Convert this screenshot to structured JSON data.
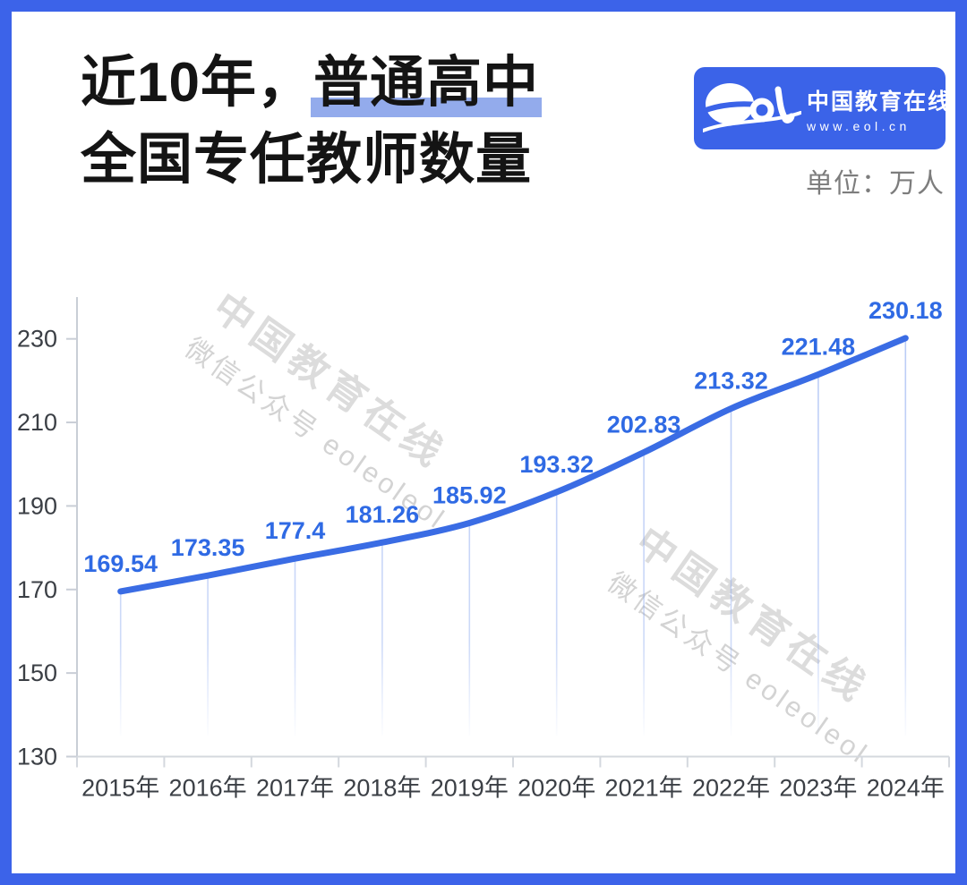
{
  "frame_color": "#3c63e9",
  "header": {
    "title_line1_pre": "近10年，",
    "title_line1_highlight": "普通高中",
    "title_line2": "全国专任教师数量",
    "unit_label": "单位：万人",
    "logo": {
      "name": "中国教育在线",
      "url": "www.eol.cn"
    }
  },
  "watermark": {
    "line1": "中国教育在线",
    "line2": "微信公众号 eoleoleol"
  },
  "chart_data": {
    "type": "line",
    "title": "近10年，普通高中全国专任教师数量",
    "unit": "万人",
    "categories": [
      "2015年",
      "2016年",
      "2017年",
      "2018年",
      "2019年",
      "2020年",
      "2021年",
      "2022年",
      "2023年",
      "2024年"
    ],
    "values": [
      169.54,
      173.35,
      177.4,
      181.26,
      185.92,
      193.32,
      202.83,
      213.32,
      221.48,
      230.18
    ],
    "ylim": [
      130,
      240
    ],
    "yticks": [
      130,
      150,
      170,
      190,
      210,
      230
    ],
    "grid": false,
    "legend": false,
    "smooth": true,
    "line_color": "#3a6ce4",
    "label_color": "#2f6ae4",
    "drop_line_color": "125,158,238",
    "axis_color": "#c9ced6"
  }
}
